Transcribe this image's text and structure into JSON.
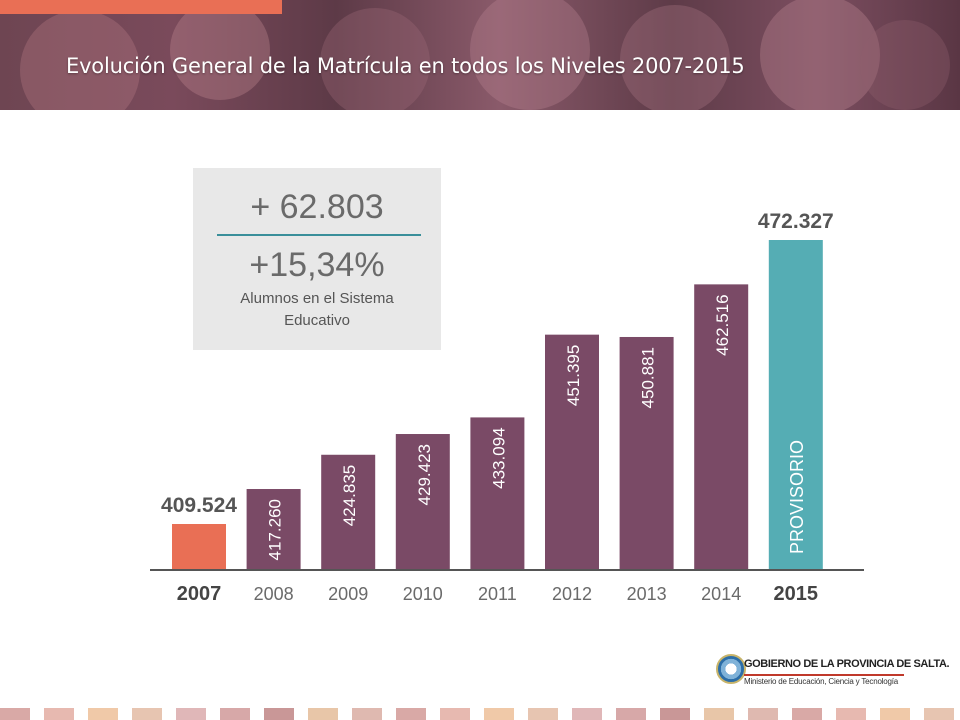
{
  "header": {
    "title": "Evolución General de la Matrícula en todos los Niveles 2007-2015"
  },
  "summary": {
    "increase_abs": "+ 62.803",
    "increase_pct": "+15,34%",
    "label": "Alumnos en el Sistema Educativo"
  },
  "chart_data": {
    "type": "bar",
    "categories": [
      "2007",
      "2008",
      "2009",
      "2010",
      "2011",
      "2012",
      "2013",
      "2014",
      "2015"
    ],
    "values": [
      409524,
      417260,
      424835,
      429423,
      433094,
      451395,
      450881,
      462516,
      472327
    ],
    "value_labels": [
      "409.524",
      "417.260",
      "424.835",
      "429.423",
      "433.094",
      "451.395",
      "450.881",
      "462.516",
      "472.327"
    ],
    "bar_annotation_2015": "PROVISORIO",
    "title": "",
    "xlabel": "",
    "ylabel": "",
    "colors": {
      "first": "#e96f55",
      "middle": "#7a4a66",
      "last": "#55adb4",
      "axis": "#555555"
    }
  },
  "footer": {
    "government": "GOBIERNO DE LA PROVINCIA DE SALTA.",
    "ministry": "Ministerio de Educación, Ciencia y Tecnología"
  },
  "stripe_colors": [
    "#d9a9a6",
    "#e7b9b0",
    "#f0c9a8",
    "#e7c5b1",
    "#e0b7b8",
    "#d7a8a8",
    "#c99797",
    "#e8c6a8",
    "#dfb9b0"
  ]
}
